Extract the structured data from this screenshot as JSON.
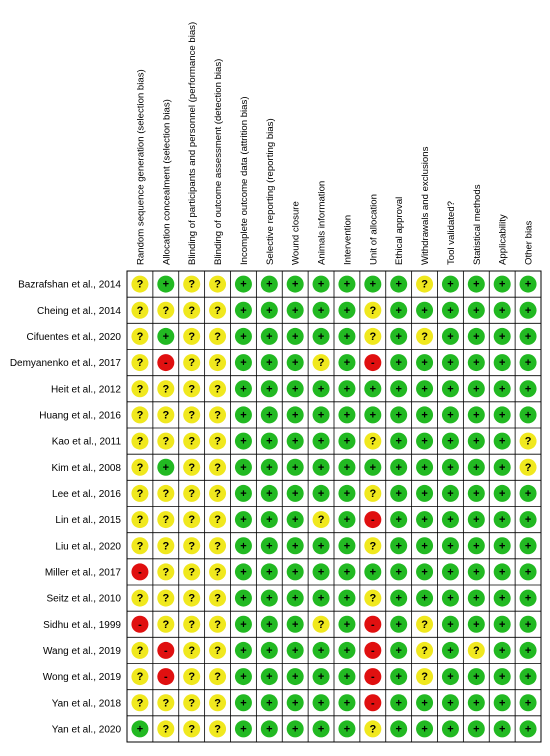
{
  "domains": [
    "Random sequence generation (selection bias)",
    "Allocation concealment (selection bias)",
    "Blinding of participants and personnel (performance bias)",
    "Blinding of outcome assessment (detection bias)",
    "Incomplete outcome data (attrition bias)",
    "Selective reporting (reporting bias)",
    "Wound closure",
    "Animals information",
    "Intervention",
    "Unit of allocation",
    "Ethical approval",
    "Withdrawals and exclusions",
    "Tool validated?",
    "Statistical methods",
    "Applicability",
    "Other bias"
  ],
  "levels": [
    {
      "symbol": "+",
      "color": "#22b922"
    },
    {
      "symbol": "?",
      "color": "#f0e81e"
    },
    {
      "symbol": "-",
      "color": "#e01010"
    }
  ],
  "studies": [
    {
      "name": "Bazrafshan et al., 2014",
      "judgments": [
        "?",
        "+",
        "?",
        "?",
        "+",
        "+",
        "+",
        "+",
        "+",
        "+",
        "+",
        "?",
        "+",
        "+",
        "+",
        "+"
      ]
    },
    {
      "name": "Cheing et al., 2014",
      "judgments": [
        "?",
        "?",
        "?",
        "?",
        "+",
        "+",
        "+",
        "+",
        "+",
        "?",
        "+",
        "+",
        "+",
        "+",
        "+",
        "+"
      ]
    },
    {
      "name": "Cifuentes et al., 2020",
      "judgments": [
        "?",
        "+",
        "?",
        "?",
        "+",
        "+",
        "+",
        "+",
        "+",
        "?",
        "+",
        "?",
        "+",
        "+",
        "+",
        "+"
      ]
    },
    {
      "name": "Demyanenko et al., 2017",
      "judgments": [
        "?",
        "-",
        "?",
        "?",
        "+",
        "+",
        "+",
        "?",
        "+",
        "-",
        "+",
        "+",
        "+",
        "+",
        "+",
        "+"
      ]
    },
    {
      "name": "Heit et al., 2012",
      "judgments": [
        "?",
        "?",
        "?",
        "?",
        "+",
        "+",
        "+",
        "+",
        "+",
        "+",
        "+",
        "+",
        "+",
        "+",
        "+",
        "+"
      ]
    },
    {
      "name": "Huang et al., 2016",
      "judgments": [
        "?",
        "?",
        "?",
        "?",
        "+",
        "+",
        "+",
        "+",
        "+",
        "+",
        "+",
        "+",
        "+",
        "+",
        "+",
        "+"
      ]
    },
    {
      "name": "Kao et al., 2011",
      "judgments": [
        "?",
        "?",
        "?",
        "?",
        "+",
        "+",
        "+",
        "+",
        "+",
        "?",
        "+",
        "+",
        "+",
        "+",
        "+",
        "?"
      ]
    },
    {
      "name": "Kim et al., 2008",
      "judgments": [
        "?",
        "+",
        "?",
        "?",
        "+",
        "+",
        "+",
        "+",
        "+",
        "+",
        "+",
        "+",
        "+",
        "+",
        "+",
        "?"
      ]
    },
    {
      "name": "Lee et al., 2016",
      "judgments": [
        "?",
        "?",
        "?",
        "?",
        "+",
        "+",
        "+",
        "+",
        "+",
        "?",
        "+",
        "+",
        "+",
        "+",
        "+",
        "+"
      ]
    },
    {
      "name": "Lin et al., 2015",
      "judgments": [
        "?",
        "?",
        "?",
        "?",
        "+",
        "+",
        "+",
        "?",
        "+",
        "-",
        "+",
        "+",
        "+",
        "+",
        "+",
        "+"
      ]
    },
    {
      "name": "Liu et al., 2020",
      "judgments": [
        "?",
        "?",
        "?",
        "?",
        "+",
        "+",
        "+",
        "+",
        "+",
        "?",
        "+",
        "+",
        "+",
        "+",
        "+",
        "+"
      ]
    },
    {
      "name": "Miller et al., 2017",
      "judgments": [
        "-",
        "?",
        "?",
        "?",
        "+",
        "+",
        "+",
        "+",
        "+",
        "+",
        "+",
        "+",
        "+",
        "+",
        "+",
        "+"
      ]
    },
    {
      "name": "Seitz et al., 2010",
      "judgments": [
        "?",
        "?",
        "?",
        "?",
        "+",
        "+",
        "+",
        "+",
        "+",
        "?",
        "+",
        "+",
        "+",
        "+",
        "+",
        "+"
      ]
    },
    {
      "name": "Sidhu et al., 1999",
      "judgments": [
        "-",
        "?",
        "?",
        "?",
        "+",
        "+",
        "+",
        "?",
        "+",
        "-",
        "+",
        "?",
        "+",
        "+",
        "+",
        "+"
      ]
    },
    {
      "name": "Wang et al., 2019",
      "judgments": [
        "?",
        "-",
        "?",
        "?",
        "+",
        "+",
        "+",
        "+",
        "+",
        "-",
        "+",
        "?",
        "+",
        "?",
        "+",
        "+"
      ]
    },
    {
      "name": "Wong et al., 2019",
      "judgments": [
        "?",
        "-",
        "?",
        "?",
        "+",
        "+",
        "+",
        "+",
        "+",
        "-",
        "+",
        "?",
        "+",
        "+",
        "+",
        "+"
      ]
    },
    {
      "name": "Yan et al., 2018",
      "judgments": [
        "?",
        "?",
        "?",
        "?",
        "+",
        "+",
        "+",
        "+",
        "+",
        "-",
        "+",
        "+",
        "+",
        "+",
        "+",
        "+"
      ]
    },
    {
      "name": "Yan et al., 2020",
      "judgments": [
        "+",
        "?",
        "?",
        "?",
        "+",
        "+",
        "+",
        "+",
        "+",
        "?",
        "+",
        "+",
        "+",
        "+",
        "+",
        "+"
      ]
    }
  ]
}
